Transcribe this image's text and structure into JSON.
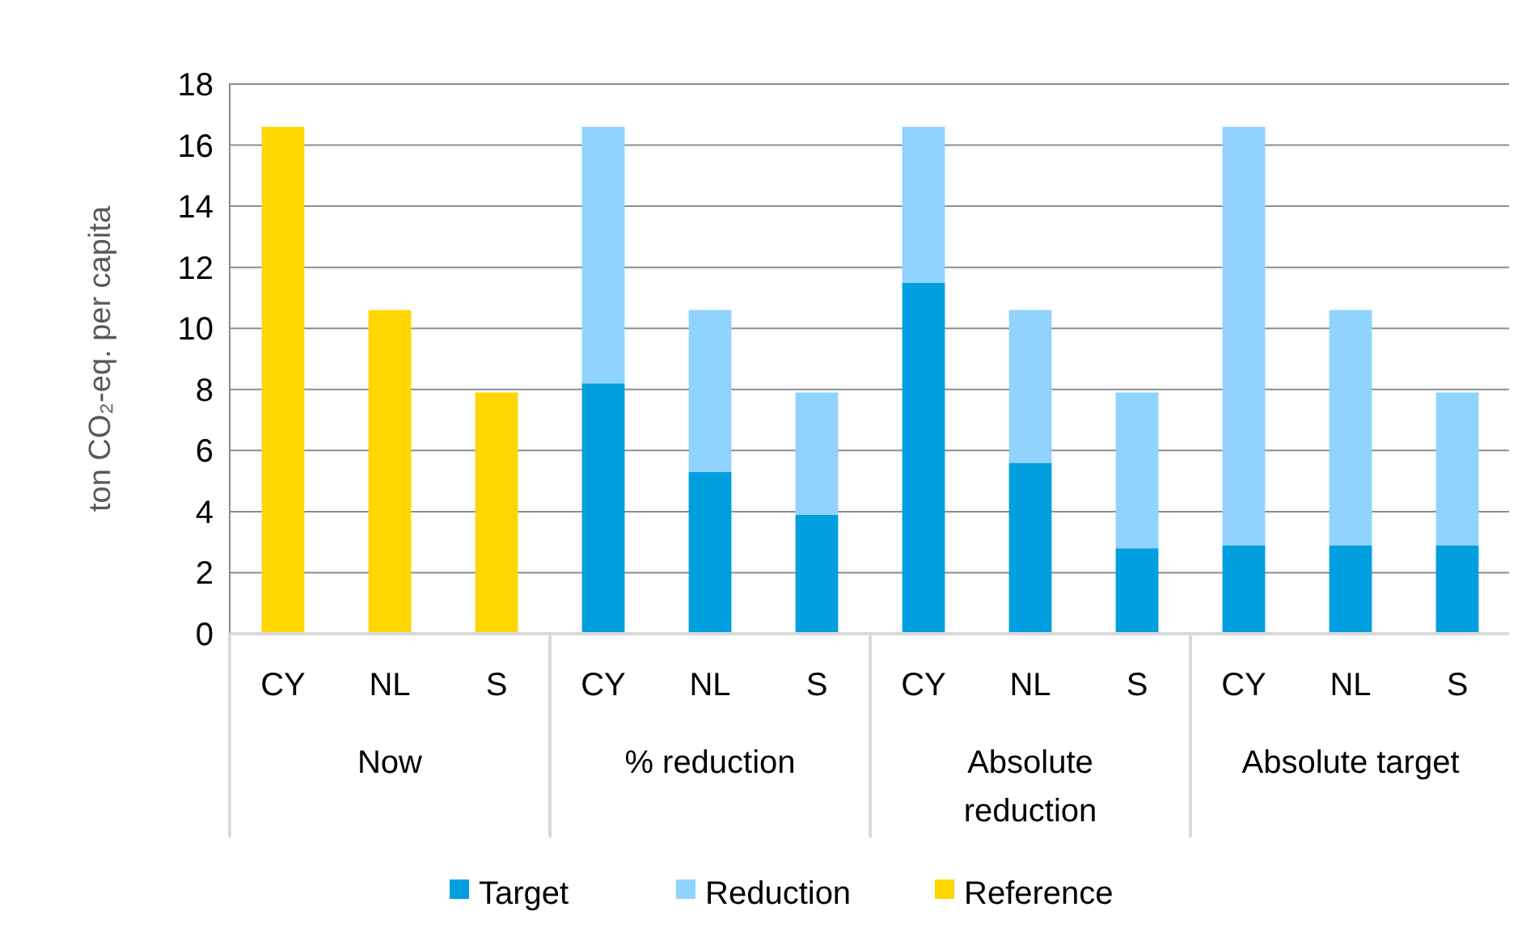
{
  "chart_data": {
    "type": "bar",
    "stacked": true,
    "ylabel": "ton CO₂-eq. per capita",
    "categories": [
      "CY",
      "NL",
      "S",
      "CY",
      "NL",
      "S",
      "CY",
      "NL",
      "S",
      "CY",
      "NL",
      "S"
    ],
    "annotations": [
      "Now",
      "% reduction",
      "Absolute reduction",
      "Absolute target"
    ],
    "series": [
      {
        "name": "Target",
        "color": "#009fdf",
        "values": [
          null,
          null,
          null,
          8.2,
          5.3,
          3.9,
          11.5,
          5.6,
          2.8,
          2.9,
          2.9,
          2.9
        ]
      },
      {
        "name": "Reduction",
        "color": "#8fd3fe",
        "values": [
          null,
          null,
          null,
          8.4,
          5.3,
          4.0,
          5.1,
          5.0,
          5.1,
          13.7,
          7.7,
          5.0
        ]
      },
      {
        "name": "Reference",
        "color": "#ffd700",
        "values": [
          16.6,
          10.6,
          7.9,
          null,
          null,
          null,
          null,
          null,
          null,
          null,
          null,
          null
        ]
      }
    ],
    "ylim": [
      0,
      18
    ],
    "yticks": [
      0,
      2,
      4,
      6,
      8,
      10,
      12,
      14,
      16,
      18
    ],
    "grid": "y",
    "legend": "bottom"
  }
}
